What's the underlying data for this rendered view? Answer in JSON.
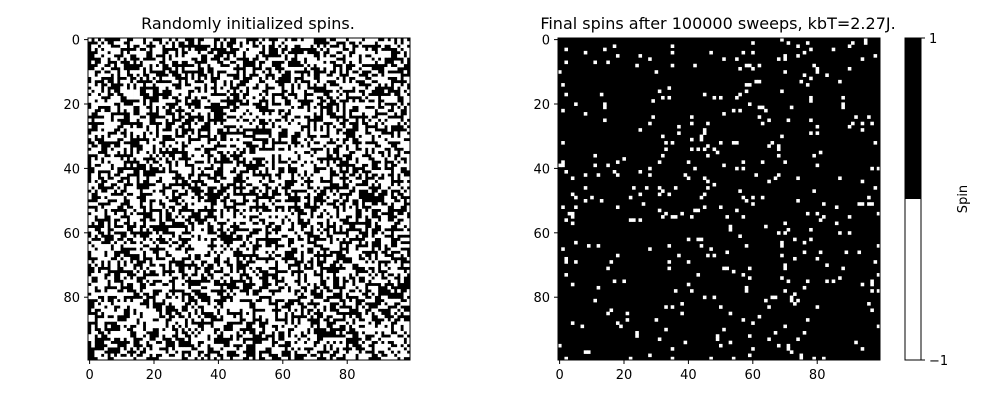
{
  "chart_data": [
    {
      "type": "heatmap",
      "title": "Randomly initialized spins.",
      "grid_size": [
        100,
        100
      ],
      "value_levels": [
        -1,
        1
      ],
      "up_fraction": 0.5,
      "x_ticks": [
        0,
        20,
        40,
        60,
        80
      ],
      "y_ticks": [
        0,
        20,
        40,
        60,
        80
      ],
      "xlim": [
        -0.5,
        99.5
      ],
      "ylim": [
        99.5,
        -0.5
      ],
      "grid": false,
      "colormap": {
        "-1": "#ffffff",
        "1": "#000000"
      }
    },
    {
      "type": "heatmap",
      "title": "Final spins after 100000 sweeps, kbT=2.27J.",
      "grid_size": [
        100,
        100
      ],
      "value_levels": [
        -1,
        1
      ],
      "up_fraction": 0.96,
      "x_ticks": [
        0,
        20,
        40,
        60,
        80
      ],
      "y_ticks": [
        0,
        20,
        40,
        60,
        80
      ],
      "xlim": [
        -0.5,
        99.5
      ],
      "ylim": [
        99.5,
        -0.5
      ],
      "grid": false,
      "colormap": {
        "-1": "#ffffff",
        "1": "#000000"
      }
    }
  ],
  "colorbar": {
    "label": "Spin",
    "ticks": [
      {
        "value": 1,
        "label": "1"
      },
      {
        "value": -1,
        "label": "−1"
      }
    ],
    "range": [
      -1,
      1
    ],
    "colors": {
      "upper": "#000000",
      "lower": "#ffffff"
    }
  }
}
